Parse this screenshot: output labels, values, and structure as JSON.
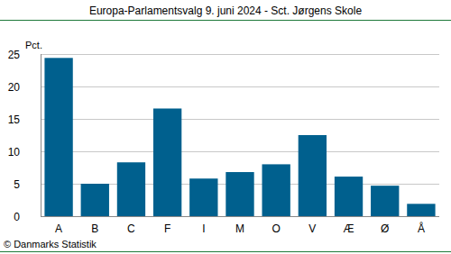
{
  "chart_data": {
    "type": "bar",
    "title": "Europa-Parlamentsvalg 9. juni 2024 - Sct. Jørgens Skole",
    "y_label": "Pct.",
    "source": "© Danmarks Statistik",
    "categories": [
      "A",
      "B",
      "C",
      "F",
      "I",
      "M",
      "O",
      "V",
      "Æ",
      "Ø",
      "Å"
    ],
    "values": [
      24.4,
      5.0,
      8.3,
      16.6,
      5.8,
      6.8,
      8.0,
      12.5,
      6.1,
      4.7,
      1.9
    ],
    "color": "#00608e",
    "ylim": [
      0,
      25
    ],
    "yticks": [
      0,
      5,
      10,
      15,
      20,
      25
    ],
    "grid": true
  }
}
